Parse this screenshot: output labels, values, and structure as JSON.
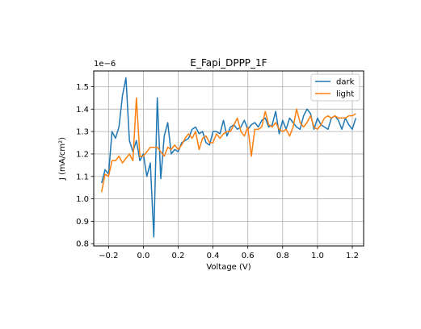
{
  "chart_data": {
    "type": "line",
    "title": "E_Fapi_DPPP_1F",
    "xlabel": "Voltage (V)",
    "ylabel": "J (mA/cm²)",
    "offset_text": "1e−6",
    "xlim": [
      -0.285,
      1.265
    ],
    "ylim": [
      0.79,
      1.57
    ],
    "xticks": [
      -0.2,
      0.0,
      0.2,
      0.4,
      0.6,
      0.8,
      1.0,
      1.2
    ],
    "xtick_labels": [
      "−0.2",
      "0.0",
      "0.2",
      "0.4",
      "0.6",
      "0.8",
      "1.0",
      "1.2"
    ],
    "yticks": [
      0.8,
      0.9,
      1.0,
      1.1,
      1.2,
      1.3,
      1.4,
      1.5
    ],
    "ytick_labels": [
      "0.8",
      "0.9",
      "1.0",
      "1.1",
      "1.2",
      "1.3",
      "1.4",
      "1.5"
    ],
    "grid": true,
    "legend_position": "top-right",
    "x": [
      -0.24,
      -0.22,
      -0.2,
      -0.18,
      -0.16,
      -0.14,
      -0.12,
      -0.1,
      -0.08,
      -0.06,
      -0.04,
      -0.02,
      0.0,
      0.02,
      0.04,
      0.06,
      0.08,
      0.1,
      0.12,
      0.14,
      0.16,
      0.18,
      0.2,
      0.22,
      0.24,
      0.26,
      0.28,
      0.3,
      0.32,
      0.34,
      0.36,
      0.38,
      0.4,
      0.42,
      0.44,
      0.46,
      0.48,
      0.5,
      0.52,
      0.54,
      0.56,
      0.58,
      0.6,
      0.62,
      0.64,
      0.66,
      0.68,
      0.7,
      0.72,
      0.74,
      0.76,
      0.78,
      0.8,
      0.82,
      0.84,
      0.86,
      0.88,
      0.9,
      0.92,
      0.94,
      0.96,
      0.98,
      1.0,
      1.02,
      1.04,
      1.06,
      1.08,
      1.1,
      1.12,
      1.14,
      1.16,
      1.18,
      1.2,
      1.22
    ],
    "series": [
      {
        "name": "dark",
        "color": "#1f77b4",
        "values": [
          1.07,
          1.13,
          1.11,
          1.3,
          1.27,
          1.32,
          1.46,
          1.54,
          1.26,
          1.21,
          1.26,
          1.17,
          1.2,
          1.1,
          1.16,
          0.83,
          1.45,
          1.09,
          1.28,
          1.34,
          1.2,
          1.22,
          1.21,
          1.25,
          1.26,
          1.27,
          1.31,
          1.32,
          1.29,
          1.3,
          1.25,
          1.24,
          1.3,
          1.3,
          1.29,
          1.35,
          1.28,
          1.32,
          1.33,
          1.31,
          1.32,
          1.35,
          1.31,
          1.33,
          1.34,
          1.32,
          1.35,
          1.36,
          1.32,
          1.33,
          1.39,
          1.29,
          1.35,
          1.31,
          1.36,
          1.34,
          1.32,
          1.31,
          1.37,
          1.4,
          1.38,
          1.31,
          1.36,
          1.33,
          1.32,
          1.31,
          1.36,
          1.37,
          1.35,
          1.31,
          1.36,
          1.33,
          1.31,
          1.36
        ]
      },
      {
        "name": "light",
        "color": "#ff7f0e",
        "values": [
          1.03,
          1.11,
          1.1,
          1.17,
          1.17,
          1.19,
          1.16,
          1.18,
          1.2,
          1.17,
          1.45,
          1.19,
          1.19,
          1.21,
          1.23,
          1.23,
          1.23,
          1.21,
          1.19,
          1.23,
          1.22,
          1.24,
          1.22,
          1.24,
          1.27,
          1.29,
          1.27,
          1.3,
          1.22,
          1.27,
          1.28,
          1.25,
          1.25,
          1.29,
          1.27,
          1.29,
          1.3,
          1.3,
          1.33,
          1.36,
          1.3,
          1.28,
          1.32,
          1.19,
          1.31,
          1.31,
          1.32,
          1.39,
          1.33,
          1.32,
          1.34,
          1.31,
          1.3,
          1.31,
          1.28,
          1.32,
          1.4,
          1.34,
          1.32,
          1.34,
          1.37,
          1.32,
          1.31,
          1.33,
          1.36,
          1.37,
          1.36,
          1.37,
          1.36,
          1.36,
          1.36,
          1.37,
          1.37,
          1.38
        ]
      }
    ]
  }
}
